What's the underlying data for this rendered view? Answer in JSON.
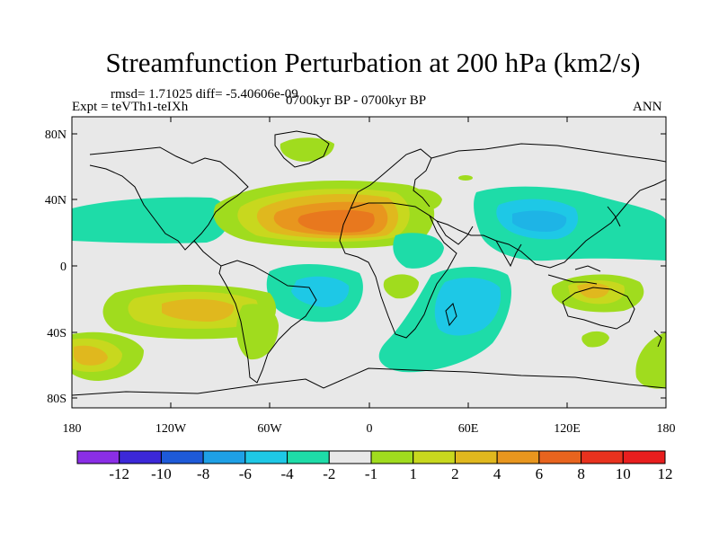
{
  "title": "Streamfunction Perturbation at 200 hPa (km2/s)",
  "stats": "rmsd= 1.71025 diff= -5.40606e-09",
  "experiment": "Expt = teVTh1-teIXh",
  "period": "0700kyr BP - 0700kyr BP",
  "season": "ANN",
  "axes": {
    "lat_ticks": [
      "80N",
      "40N",
      "0",
      "40S",
      "80S"
    ],
    "lon_ticks": [
      "180",
      "120W",
      "60W",
      "0",
      "60E",
      "120E",
      "180"
    ]
  },
  "colorbar": {
    "labels": [
      "-12",
      "-10",
      "-8",
      "-6",
      "-4",
      "-2",
      "-1",
      "1",
      "2",
      "4",
      "6",
      "8",
      "10",
      "12"
    ],
    "colors": [
      "#8a2ee6",
      "#3c28d8",
      "#1e5ad8",
      "#1ea0e6",
      "#1ec8e6",
      "#1edca8",
      "#e8e8e8",
      "#a0dc1e",
      "#c8d81e",
      "#e0b81e",
      "#e8961e",
      "#e8641e",
      "#e8321e",
      "#e81e1e"
    ]
  }
}
